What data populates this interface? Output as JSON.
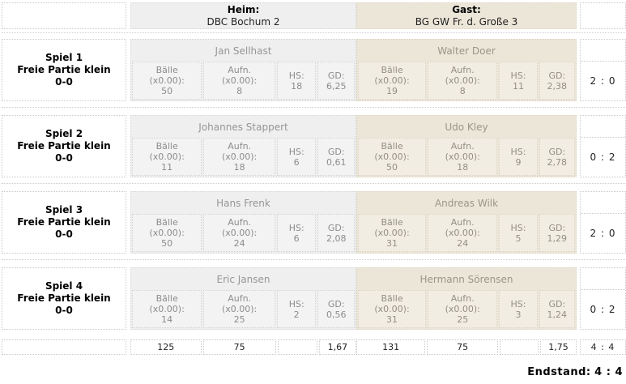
{
  "header": {
    "home_label": "Heim:",
    "home_team": "DBC Bochum 2",
    "guest_label": "Gast:",
    "guest_team": "BG GW Fr. d. Große 3"
  },
  "labels": {
    "balls": "Bälle",
    "xfactor": "(x0.00):",
    "aufn": "Aufn.",
    "hs": "HS:",
    "gd": "GD:"
  },
  "games": [
    {
      "title": "Spiel 1",
      "discipline": "Freie Partie klein",
      "handicap": "0-0",
      "home": {
        "player": "Jan Sellhast",
        "balls": "50",
        "aufn": "8",
        "hs": "18",
        "gd": "6,25"
      },
      "guest": {
        "player": "Walter Doer",
        "balls": "19",
        "aufn": "8",
        "hs": "11",
        "gd": "2,38"
      },
      "result": "2 : 0"
    },
    {
      "title": "Spiel 2",
      "discipline": "Freie Partie klein",
      "handicap": "0-0",
      "home": {
        "player": "Johannes Stappert",
        "balls": "11",
        "aufn": "18",
        "hs": "6",
        "gd": "0,61"
      },
      "guest": {
        "player": "Udo Kley",
        "balls": "50",
        "aufn": "18",
        "hs": "9",
        "gd": "2,78"
      },
      "result": "0 : 2"
    },
    {
      "title": "Spiel 3",
      "discipline": "Freie Partie klein",
      "handicap": "0-0",
      "home": {
        "player": "Hans Frenk",
        "balls": "50",
        "aufn": "24",
        "hs": "6",
        "gd": "2,08"
      },
      "guest": {
        "player": "Andreas Wilk",
        "balls": "31",
        "aufn": "24",
        "hs": "5",
        "gd": "1,29"
      },
      "result": "2 : 0"
    },
    {
      "title": "Spiel 4",
      "discipline": "Freie Partie klein",
      "handicap": "0-0",
      "home": {
        "player": "Eric Jansen",
        "balls": "14",
        "aufn": "25",
        "hs": "2",
        "gd": "0,56"
      },
      "guest": {
        "player": "Hermann Sörensen",
        "balls": "31",
        "aufn": "25",
        "hs": "3",
        "gd": "1,24"
      },
      "result": "0 : 2"
    }
  ],
  "totals": {
    "home": {
      "balls": "125",
      "aufn": "75",
      "hs": "",
      "gd": "1,67"
    },
    "guest": {
      "balls": "131",
      "aufn": "75",
      "hs": "",
      "gd": "1,75"
    },
    "result": "4 : 4"
  },
  "final": {
    "label": "Endstand:",
    "score": "4 : 4"
  },
  "colors": {
    "home_bg": "#efefef",
    "guest_bg": "#ece6d9",
    "home_cell_bg": "#f3f3f3",
    "guest_cell_bg": "#f2ede2",
    "border_dotted": "#c9c9c9",
    "muted_text": "#8c8c8c"
  }
}
